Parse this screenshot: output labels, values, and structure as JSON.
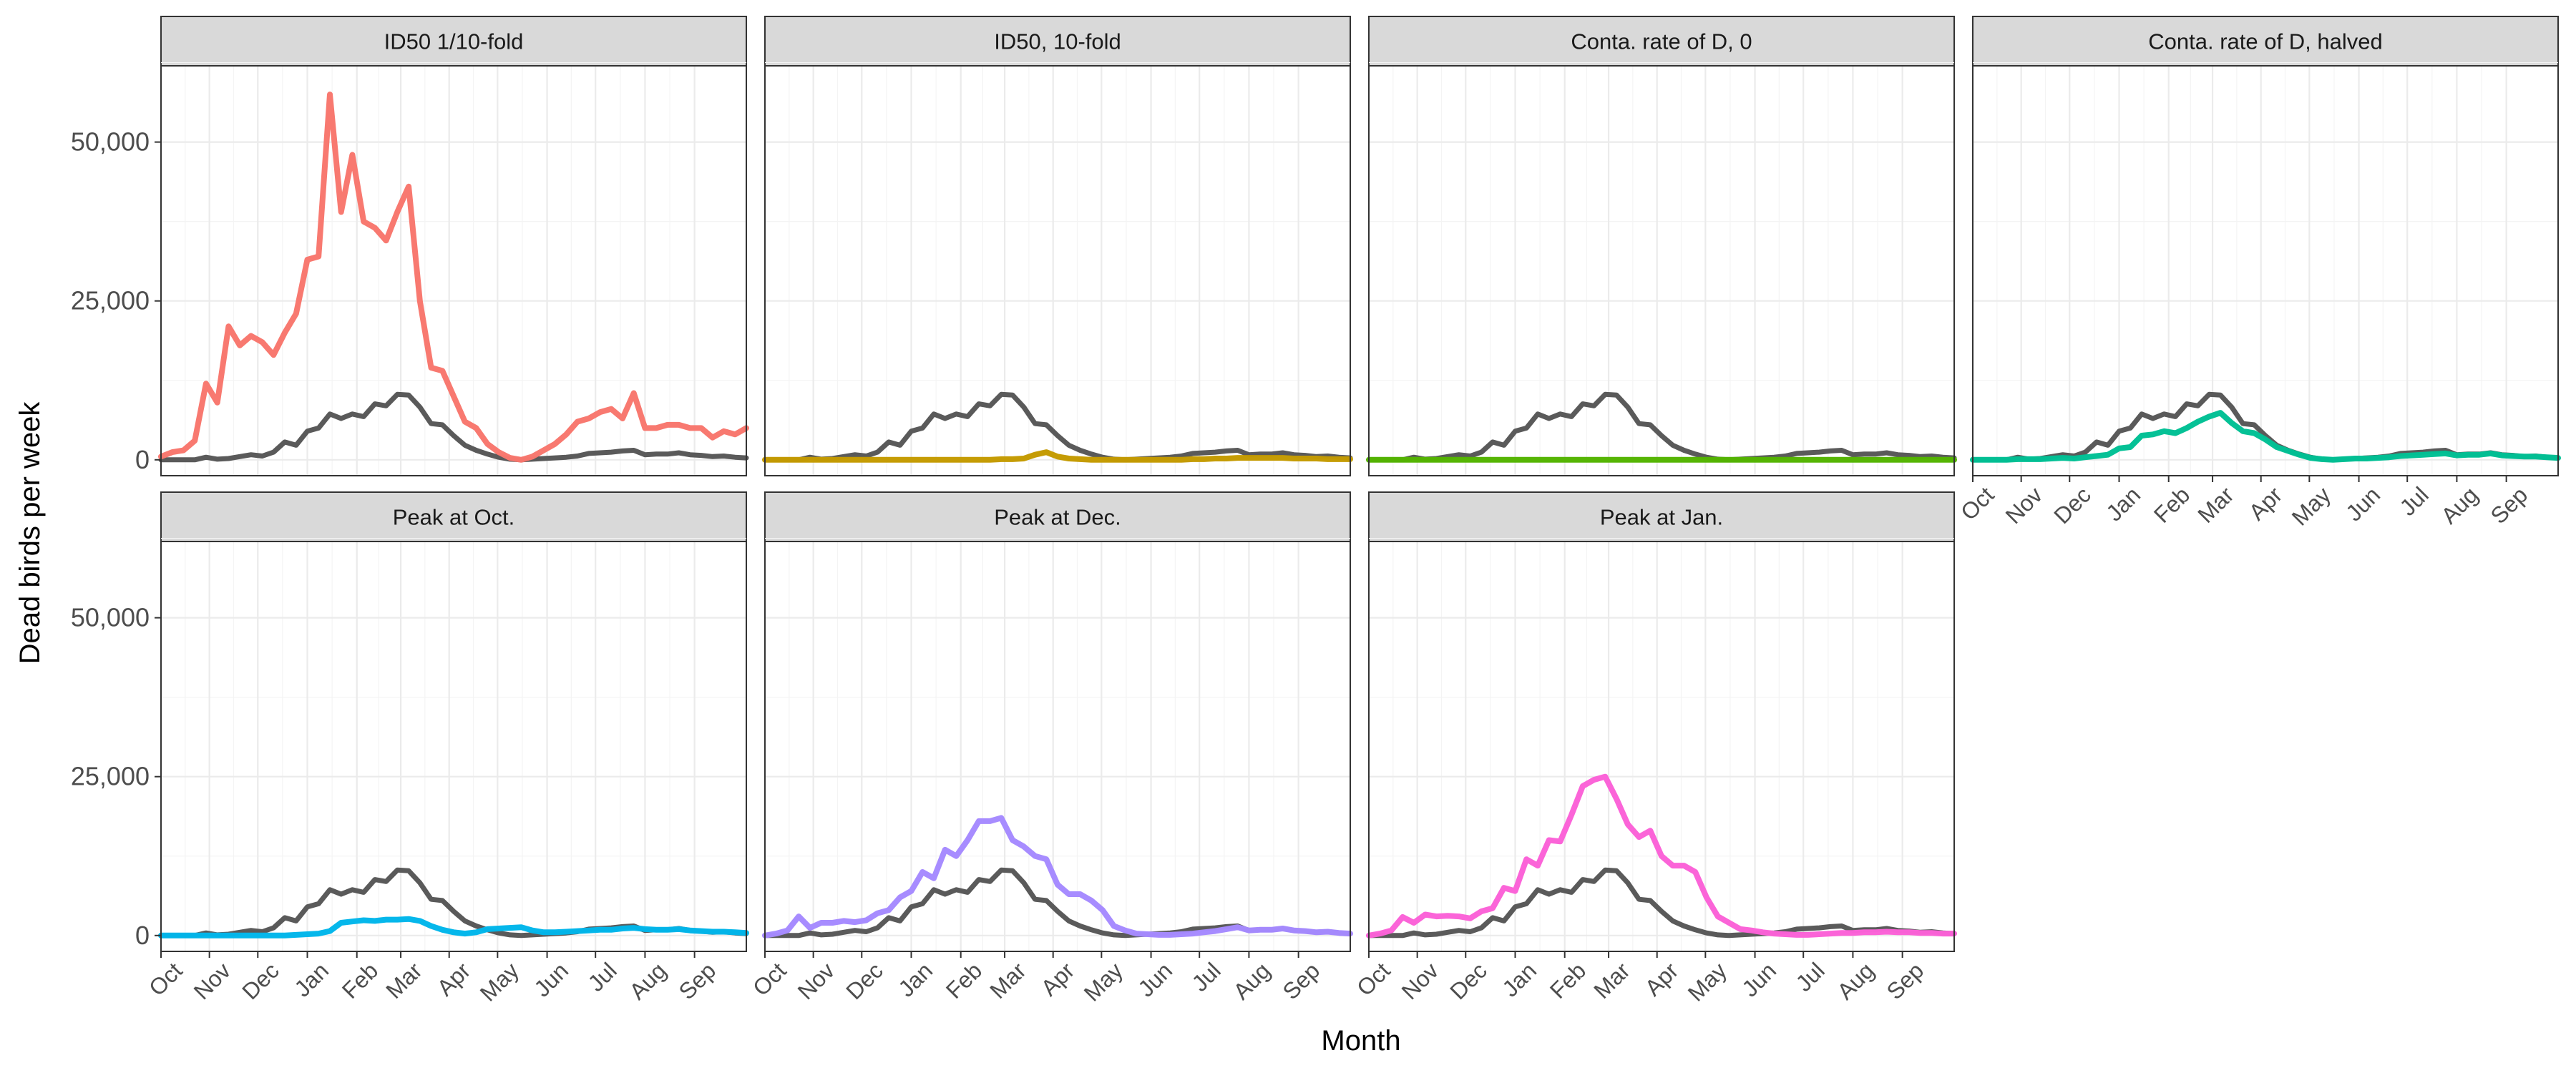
{
  "chart_data": {
    "type": "line",
    "xlabel": "Month",
    "ylabel": "Dead birds per week",
    "yticks": [
      0,
      25000,
      50000
    ],
    "ytick_labels": [
      "0",
      "25,000",
      "50,000"
    ],
    "ylim": [
      -2500,
      62000
    ],
    "x_range_weeks": [
      0,
      52
    ],
    "month_labels": [
      "Oct",
      "Nov",
      "Dec",
      "Jan",
      "Feb",
      "Mar",
      "Apr",
      "May",
      "Jun",
      "Jul",
      "Aug",
      "Sep"
    ],
    "month_start_weeks": [
      0,
      4.3,
      8.6,
      13,
      17.4,
      21.3,
      25.6,
      29.9,
      34.3,
      38.6,
      43,
      47.4
    ],
    "grid": true,
    "baseline_series": {
      "color": "#5a5a5a",
      "values": [
        0,
        0,
        0,
        0,
        400,
        100,
        200,
        500,
        800,
        600,
        1200,
        2800,
        2300,
        4500,
        5000,
        7200,
        6500,
        7200,
        6800,
        8800,
        8500,
        10300,
        10200,
        8300,
        5700,
        5500,
        3800,
        2300,
        1500,
        900,
        400,
        100,
        0,
        100,
        200,
        300,
        400,
        600,
        1000,
        1100,
        1200,
        1400,
        1500,
        800,
        900,
        900,
        1100,
        800,
        700,
        500,
        600,
        400,
        300
      ]
    },
    "panels": [
      {
        "title": "ID50 1/10-fold",
        "color": "#f8766d",
        "values": [
          500,
          1200,
          1500,
          3000,
          12000,
          9000,
          21000,
          18000,
          19500,
          18500,
          16500,
          20000,
          23000,
          31500,
          32000,
          57500,
          39000,
          48000,
          37500,
          36500,
          34500,
          39000,
          43000,
          25000,
          14500,
          14000,
          10000,
          6000,
          5000,
          2500,
          1200,
          300,
          0,
          500,
          1500,
          2500,
          4000,
          6000,
          6500,
          7500,
          8000,
          6500,
          10500,
          5000,
          5000,
          5500,
          5500,
          5000,
          5000,
          3500,
          4500,
          4000,
          5000
        ],
        "row": 0,
        "col": 0,
        "x_axis": false
      },
      {
        "title": "ID50, 10-fold",
        "color": "#c49a00",
        "values": [
          0,
          0,
          0,
          0,
          0,
          0,
          0,
          0,
          0,
          0,
          0,
          0,
          0,
          0,
          0,
          0,
          0,
          0,
          0,
          0,
          0,
          100,
          100,
          200,
          800,
          1200,
          500,
          200,
          100,
          0,
          0,
          0,
          0,
          0,
          0,
          0,
          0,
          0,
          100,
          100,
          200,
          200,
          300,
          300,
          300,
          300,
          300,
          200,
          200,
          200,
          100,
          100,
          100
        ],
        "row": 0,
        "col": 1,
        "x_axis": false
      },
      {
        "title": "Conta. rate of D, 0",
        "color": "#53b400",
        "values": [
          0,
          0,
          0,
          0,
          0,
          0,
          0,
          0,
          0,
          0,
          0,
          0,
          0,
          0,
          0,
          0,
          0,
          0,
          0,
          0,
          0,
          0,
          0,
          0,
          0,
          0,
          0,
          0,
          0,
          0,
          0,
          0,
          0,
          0,
          0,
          0,
          0,
          0,
          0,
          0,
          0,
          0,
          0,
          0,
          0,
          0,
          0,
          0,
          0,
          0,
          0,
          0,
          0
        ],
        "row": 0,
        "col": 2,
        "x_axis": false
      },
      {
        "title": "Conta. rate of D, halved",
        "color": "#00c094",
        "values": [
          0,
          0,
          0,
          0,
          100,
          100,
          100,
          200,
          300,
          200,
          400,
          600,
          800,
          1800,
          2000,
          3800,
          4000,
          4500,
          4200,
          5000,
          6000,
          6800,
          7400,
          5800,
          4500,
          4200,
          3200,
          2000,
          1400,
          800,
          300,
          100,
          0,
          100,
          200,
          200,
          300,
          400,
          600,
          700,
          800,
          900,
          1000,
          700,
          800,
          800,
          1000,
          700,
          600,
          500,
          500,
          400,
          300
        ],
        "row": 0,
        "col": 3,
        "x_axis": true
      },
      {
        "title": "Peak at Oct.",
        "color": "#00b6eb",
        "values": [
          0,
          0,
          0,
          0,
          0,
          0,
          0,
          0,
          0,
          0,
          0,
          0,
          100,
          200,
          300,
          700,
          2000,
          2200,
          2400,
          2300,
          2500,
          2500,
          2600,
          2300,
          1500,
          900,
          500,
          300,
          500,
          1000,
          1100,
          1200,
          1300,
          800,
          500,
          500,
          600,
          700,
          800,
          900,
          900,
          1100,
          1200,
          1000,
          900,
          900,
          1000,
          800,
          700,
          600,
          600,
          500,
          400
        ],
        "row": 1,
        "col": 0,
        "x_axis": true
      },
      {
        "title": "Peak at Dec.",
        "color": "#a58aff",
        "values": [
          0,
          300,
          800,
          3000,
          1200,
          2000,
          2000,
          2300,
          2100,
          2400,
          3500,
          4000,
          6000,
          7000,
          10000,
          9000,
          13500,
          12500,
          15000,
          18000,
          18000,
          18500,
          15000,
          14000,
          12500,
          12000,
          8000,
          6500,
          6500,
          5500,
          4000,
          1500,
          800,
          300,
          200,
          100,
          100,
          200,
          300,
          500,
          700,
          1000,
          1300,
          800,
          900,
          900,
          1100,
          800,
          700,
          500,
          600,
          400,
          300
        ],
        "row": 1,
        "col": 1,
        "x_axis": true
      },
      {
        "title": "Peak at Jan.",
        "color": "#fb61d7",
        "values": [
          0,
          300,
          800,
          2900,
          2000,
          3300,
          3000,
          3100,
          3000,
          2700,
          3800,
          4300,
          7500,
          7000,
          12000,
          11000,
          15000,
          14800,
          19000,
          23500,
          24500,
          25000,
          21500,
          17500,
          15500,
          16500,
          12500,
          11000,
          11000,
          10000,
          6000,
          3000,
          2000,
          1000,
          800,
          500,
          300,
          200,
          100,
          100,
          200,
          300,
          400,
          400,
          500,
          500,
          600,
          500,
          500,
          400,
          400,
          300,
          300
        ],
        "row": 1,
        "col": 2,
        "x_axis": true
      }
    ]
  }
}
